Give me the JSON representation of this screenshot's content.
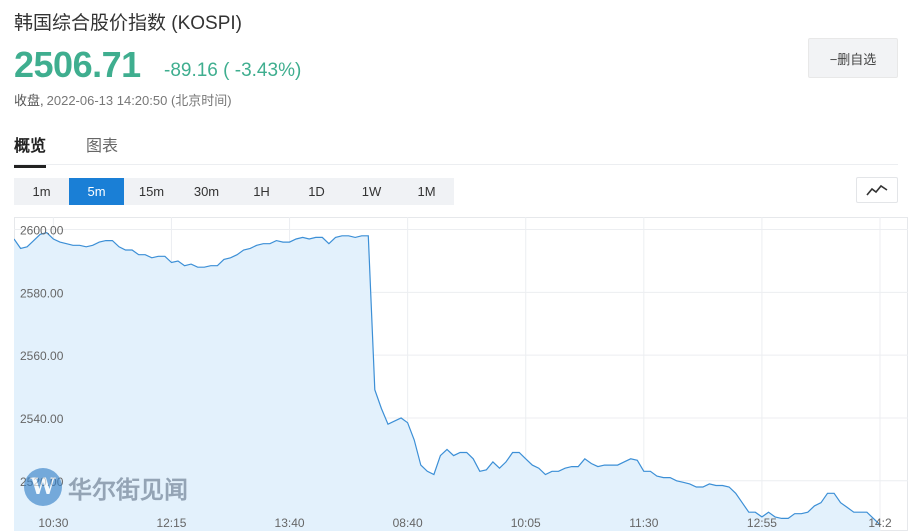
{
  "header": {
    "title": "韩国综合股价指数 (KOSPI)",
    "price": "2506.71",
    "change": "-89.16 ( -3.43%)",
    "status": "收盘,",
    "timestamp": "2022-06-13 14:20:50 (北京时间)",
    "watchlist_button": "−删自选"
  },
  "tabs": [
    {
      "label": "概览",
      "active": true
    },
    {
      "label": "图表",
      "active": false
    }
  ],
  "periods": [
    {
      "label": "1m",
      "active": false
    },
    {
      "label": "5m",
      "active": true
    },
    {
      "label": "15m",
      "active": false
    },
    {
      "label": "30m",
      "active": false
    },
    {
      "label": "1H",
      "active": false
    },
    {
      "label": "1D",
      "active": false
    },
    {
      "label": "1W",
      "active": false
    },
    {
      "label": "1M",
      "active": false
    }
  ],
  "chart_type_icon": "line-chart-icon",
  "watermark": {
    "logo_letter": "W",
    "text": "华尔街见闻"
  },
  "colors": {
    "up_down_green": "#3fae8f",
    "accent_blue": "#1a7fd6",
    "line": "#3c8fd6",
    "area_fill": "#e3f1fc"
  },
  "chart_data": {
    "type": "area",
    "title": "",
    "xlabel": "",
    "ylabel": "",
    "ylim": [
      2504,
      2604
    ],
    "yticks": [
      "2600.00",
      "2580.00",
      "2560.00",
      "2540.00",
      "2520.00"
    ],
    "ytick_values": [
      2600,
      2580,
      2560,
      2540,
      2520
    ],
    "xticks": [
      "10:30",
      "12:15",
      "13:40",
      "08:40",
      "10:05",
      "11:30",
      "12:55",
      "14:2"
    ],
    "xtick_index": [
      6,
      24,
      42,
      60,
      78,
      96,
      114,
      132
    ],
    "grid": true,
    "series": [
      {
        "values": [
          2597.0,
          2594.0,
          2594.5,
          2596.5,
          2598.5,
          2599.0,
          2597.0,
          2596.0,
          2595.5,
          2595.0,
          2595.0,
          2594.5,
          2595.0,
          2596.0,
          2596.5,
          2596.5,
          2594.5,
          2593.5,
          2593.5,
          2592.0,
          2592.0,
          2591.0,
          2591.5,
          2591.5,
          2589.5,
          2590.0,
          2588.5,
          2589.0,
          2588.0,
          2588.0,
          2588.5,
          2588.5,
          2590.5,
          2591.0,
          2592.0,
          2593.5,
          2594.0,
          2595.0,
          2595.5,
          2595.5,
          2596.5,
          2596.0,
          2596.0,
          2597.0,
          2597.5,
          2597.0,
          2597.5,
          2597.5,
          2595.5,
          2597.5,
          2598.0,
          2598.0,
          2597.5,
          2598.0,
          2598.0,
          2549.0,
          2543.0,
          2538.0,
          2539.0,
          2540.0,
          2538.5,
          2533.0,
          2525.0,
          2523.0,
          2522.0,
          2528.0,
          2530.0,
          2528.0,
          2529.0,
          2529.0,
          2527.0,
          2523.0,
          2523.5,
          2526.0,
          2524.0,
          2526.0,
          2529.0,
          2529.0,
          2527.0,
          2525.0,
          2524.0,
          2522.0,
          2523.0,
          2523.0,
          2524.0,
          2524.5,
          2524.5,
          2527.0,
          2525.5,
          2524.5,
          2525.0,
          2525.0,
          2525.0,
          2526.0,
          2527.0,
          2526.5,
          2523.0,
          2523.0,
          2521.5,
          2521.0,
          2521.0,
          2520.0,
          2519.5,
          2519.0,
          2518.0,
          2518.0,
          2519.0,
          2518.5,
          2518.5,
          2518.0,
          2516.0,
          2513.0,
          2510.0,
          2510.0,
          2508.5,
          2510.0,
          2508.5,
          2508.0,
          2508.0,
          2509.5,
          2509.5,
          2510.0,
          2512.0,
          2513.0,
          2516.0,
          2516.0,
          2513.0,
          2511.5,
          2510.0,
          2510.0,
          2510.0,
          2508.0,
          2506.0
        ]
      }
    ]
  }
}
